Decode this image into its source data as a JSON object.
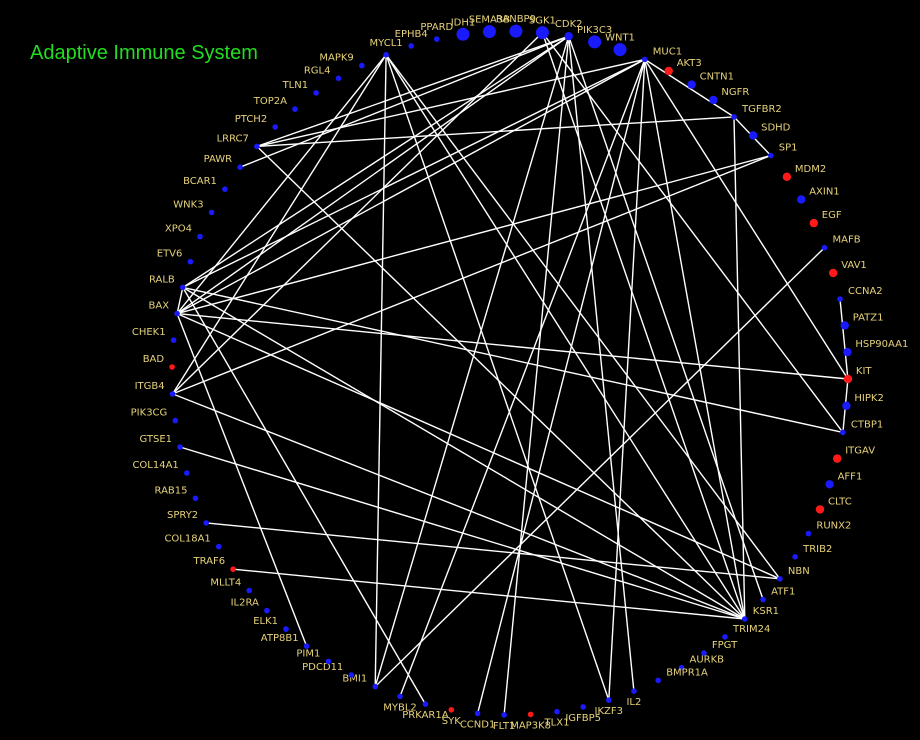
{
  "title": "Adaptive Immune System",
  "colors": {
    "background": "#000000",
    "edge": "#ffffff",
    "label": "#e6d27a",
    "title": "#22dd22",
    "blue": "#1a1aff",
    "red": "#ff1a1a"
  },
  "nodes": [
    {
      "id": "EPHB4",
      "c": "blue",
      "s": 1
    },
    {
      "id": "PPARD",
      "c": "blue",
      "s": 1
    },
    {
      "id": "IDH1",
      "c": "blue",
      "s": 3
    },
    {
      "id": "SEMA3B",
      "c": "blue",
      "s": 3
    },
    {
      "id": "RANBP9",
      "c": "blue",
      "s": 3
    },
    {
      "id": "SGK1",
      "c": "blue",
      "s": 3
    },
    {
      "id": "CDK2",
      "c": "blue",
      "s": 2
    },
    {
      "id": "PIK3C3",
      "c": "blue",
      "s": 3
    },
    {
      "id": "WNT1",
      "c": "blue",
      "s": 3
    },
    {
      "id": "MUC1",
      "c": "blue",
      "s": 1
    },
    {
      "id": "AKT3",
      "c": "red",
      "s": 2
    },
    {
      "id": "CNTN1",
      "c": "blue",
      "s": 2
    },
    {
      "id": "NGFR",
      "c": "blue",
      "s": 2
    },
    {
      "id": "TGFBR2",
      "c": "blue",
      "s": 1
    },
    {
      "id": "SDHD",
      "c": "blue",
      "s": 2
    },
    {
      "id": "SP1",
      "c": "blue",
      "s": 1
    },
    {
      "id": "MDM2",
      "c": "red",
      "s": 2
    },
    {
      "id": "AXIN1",
      "c": "blue",
      "s": 2
    },
    {
      "id": "EGF",
      "c": "red",
      "s": 2
    },
    {
      "id": "MAFB",
      "c": "blue",
      "s": 1
    },
    {
      "id": "VAV1",
      "c": "red",
      "s": 2
    },
    {
      "id": "CCNA2",
      "c": "blue",
      "s": 1
    },
    {
      "id": "PATZ1",
      "c": "blue",
      "s": 2
    },
    {
      "id": "HSP90AA1",
      "c": "blue",
      "s": 2
    },
    {
      "id": "KIT",
      "c": "red",
      "s": 2
    },
    {
      "id": "HIPK2",
      "c": "blue",
      "s": 2
    },
    {
      "id": "CTBP1",
      "c": "blue",
      "s": 1
    },
    {
      "id": "ITGAV",
      "c": "red",
      "s": 2
    },
    {
      "id": "AFF1",
      "c": "blue",
      "s": 2
    },
    {
      "id": "CLTC",
      "c": "red",
      "s": 2
    },
    {
      "id": "RUNX2",
      "c": "blue",
      "s": 1
    },
    {
      "id": "TRIB2",
      "c": "blue",
      "s": 1
    },
    {
      "id": "NBN",
      "c": "blue",
      "s": 1
    },
    {
      "id": "ATF1",
      "c": "blue",
      "s": 1
    },
    {
      "id": "KSR1",
      "c": "blue",
      "s": 1
    },
    {
      "id": "TRIM24",
      "c": "blue",
      "s": 1
    },
    {
      "id": "FPGT",
      "c": "blue",
      "s": 1
    },
    {
      "id": "AURKB",
      "c": "blue",
      "s": 1
    },
    {
      "id": "BMPR1A",
      "c": "blue",
      "s": 1
    },
    {
      "id": "IL2",
      "c": "blue",
      "s": 1
    },
    {
      "id": "IKZF3",
      "c": "blue",
      "s": 1
    },
    {
      "id": "IGFBP5",
      "c": "blue",
      "s": 1
    },
    {
      "id": "TLX1",
      "c": "blue",
      "s": 1
    },
    {
      "id": "MAP3K8",
      "c": "red",
      "s": 1
    },
    {
      "id": "FLT1",
      "c": "blue",
      "s": 1
    },
    {
      "id": "CCND1",
      "c": "blue",
      "s": 1
    },
    {
      "id": "SYK",
      "c": "red",
      "s": 1
    },
    {
      "id": "PRKAR1A",
      "c": "blue",
      "s": 1
    },
    {
      "id": "MYBL2",
      "c": "blue",
      "s": 1
    },
    {
      "id": "BMI1",
      "c": "blue",
      "s": 1
    },
    {
      "id": "PDCD11",
      "c": "blue",
      "s": 1
    },
    {
      "id": "PIM1",
      "c": "blue",
      "s": 1
    },
    {
      "id": "ATP8B1",
      "c": "blue",
      "s": 1
    },
    {
      "id": "ELK1",
      "c": "blue",
      "s": 1
    },
    {
      "id": "IL2RA",
      "c": "blue",
      "s": 1
    },
    {
      "id": "MLLT4",
      "c": "blue",
      "s": 1
    },
    {
      "id": "TRAF6",
      "c": "red",
      "s": 1
    },
    {
      "id": "COL18A1",
      "c": "blue",
      "s": 1
    },
    {
      "id": "SPRY2",
      "c": "blue",
      "s": 1
    },
    {
      "id": "RAB15",
      "c": "blue",
      "s": 1
    },
    {
      "id": "COL14A1",
      "c": "blue",
      "s": 1
    },
    {
      "id": "GTSE1",
      "c": "blue",
      "s": 1
    },
    {
      "id": "PIK3CG",
      "c": "blue",
      "s": 1
    },
    {
      "id": "ITGB4",
      "c": "blue",
      "s": 1
    },
    {
      "id": "BAD",
      "c": "red",
      "s": 1
    },
    {
      "id": "CHEK1",
      "c": "blue",
      "s": 1
    },
    {
      "id": "BAX",
      "c": "blue",
      "s": 1
    },
    {
      "id": "RALB",
      "c": "blue",
      "s": 1
    },
    {
      "id": "ETV6",
      "c": "blue",
      "s": 1
    },
    {
      "id": "XPO4",
      "c": "blue",
      "s": 1
    },
    {
      "id": "WNK3",
      "c": "blue",
      "s": 1
    },
    {
      "id": "BCAR1",
      "c": "blue",
      "s": 1
    },
    {
      "id": "PAWR",
      "c": "blue",
      "s": 1
    },
    {
      "id": "LRRC7",
      "c": "blue",
      "s": 1
    },
    {
      "id": "PTCH2",
      "c": "blue",
      "s": 1
    },
    {
      "id": "TOP2A",
      "c": "blue",
      "s": 1
    },
    {
      "id": "TLN1",
      "c": "blue",
      "s": 1
    },
    {
      "id": "RGL4",
      "c": "blue",
      "s": 1
    },
    {
      "id": "MAPK9",
      "c": "blue",
      "s": 1
    },
    {
      "id": "MYCL1",
      "c": "blue",
      "s": 1
    }
  ],
  "edges": [
    [
      "MYCL1",
      "BAX"
    ],
    [
      "MYCL1",
      "ITGB4"
    ],
    [
      "MYCL1",
      "BMI1"
    ],
    [
      "MYCL1",
      "IKZF3"
    ],
    [
      "MYCL1",
      "KSR1"
    ],
    [
      "MYCL1",
      "NBN"
    ],
    [
      "CDK2",
      "RALB"
    ],
    [
      "CDK2",
      "BAX"
    ],
    [
      "CDK2",
      "PAWR"
    ],
    [
      "CDK2",
      "LRRC7"
    ],
    [
      "CDK2",
      "FLT1"
    ],
    [
      "CDK2",
      "IL2"
    ],
    [
      "CDK2",
      "BMI1"
    ],
    [
      "CDK2",
      "ATF1"
    ],
    [
      "SGK1",
      "ITGB4"
    ],
    [
      "SGK1",
      "CTBP1"
    ],
    [
      "SGK1",
      "KSR1"
    ],
    [
      "MUC1",
      "LRRC7"
    ],
    [
      "MUC1",
      "RALB"
    ],
    [
      "MUC1",
      "BAX"
    ],
    [
      "MUC1",
      "MYBL2"
    ],
    [
      "MUC1",
      "IKZF3"
    ],
    [
      "MUC1",
      "KSR1"
    ],
    [
      "MUC1",
      "KIT"
    ],
    [
      "MUC1",
      "TGFBR2"
    ],
    [
      "MUC1",
      "CCND1"
    ],
    [
      "TGFBR2",
      "SP1"
    ],
    [
      "TGFBR2",
      "LRRC7"
    ],
    [
      "TGFBR2",
      "KSR1"
    ],
    [
      "SP1",
      "BAX"
    ],
    [
      "SP1",
      "ITGB4"
    ],
    [
      "RALB",
      "BAX"
    ],
    [
      "RALB",
      "KSR1"
    ],
    [
      "RALB",
      "PRKAR1A"
    ],
    [
      "RALB",
      "CTBP1"
    ],
    [
      "BAX",
      "KIT"
    ],
    [
      "BAX",
      "ATP8B1"
    ],
    [
      "BAX",
      "NBN"
    ],
    [
      "ITGB4",
      "KSR1"
    ],
    [
      "GTSE1",
      "KSR1"
    ],
    [
      "TRAF6",
      "KSR1"
    ],
    [
      "SPRY2",
      "NBN"
    ],
    [
      "MAFB",
      "BMI1"
    ],
    [
      "KIT",
      "CCNA2"
    ],
    [
      "KIT",
      "CTBP1"
    ],
    [
      "LRRC7",
      "KSR1"
    ]
  ]
}
